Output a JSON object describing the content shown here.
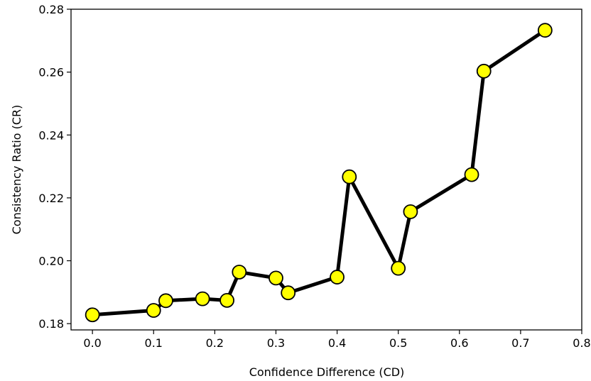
{
  "chart_data": {
    "type": "line",
    "title": "",
    "xlabel": "Confidence Difference (CD)",
    "ylabel": "Consistency Ratio (CR)",
    "xlim": [
      -0.035,
      0.8
    ],
    "ylim": [
      0.178,
      0.28
    ],
    "xticks": [
      0.0,
      0.1,
      0.2,
      0.3,
      0.4,
      0.5,
      0.6,
      0.7,
      0.8
    ],
    "xtick_labels": [
      "0.0",
      "0.1",
      "0.2",
      "0.3",
      "0.4",
      "0.5",
      "0.6",
      "0.7",
      "0.8"
    ],
    "yticks": [
      0.18,
      0.2,
      0.22,
      0.24,
      0.26,
      0.28
    ],
    "ytick_labels": [
      "0.18",
      "0.20",
      "0.22",
      "0.24",
      "0.26",
      "0.28"
    ],
    "grid": false,
    "line_color": "#000000",
    "marker_color": "#ffff00",
    "marker_edge_color": "#000000",
    "series": [
      {
        "x": [
          0.0,
          0.1,
          0.12,
          0.18,
          0.22,
          0.24,
          0.3,
          0.32,
          0.4,
          0.42,
          0.5,
          0.52,
          0.62,
          0.64,
          0.74
        ],
        "y": [
          0.1828,
          0.1842,
          0.1873,
          0.1879,
          0.1874,
          0.1964,
          0.1945,
          0.1898,
          0.1948,
          0.2267,
          0.1976,
          0.2156,
          0.2274,
          0.2603,
          0.2733
        ]
      }
    ]
  }
}
